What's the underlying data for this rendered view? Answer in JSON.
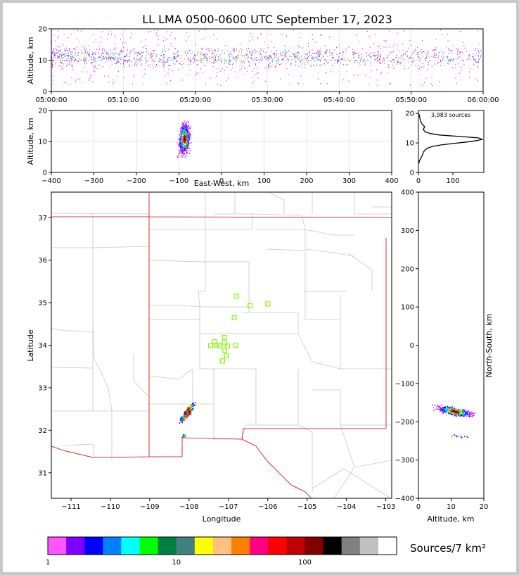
{
  "title": "LL LMA 0500-0600 UTC September 17, 2023",
  "colors": {
    "source": "#ff00ff",
    "state_border": "#d00000",
    "county_border": "#c8c8c8",
    "station_marker": "#80ff00",
    "axis": "#000000"
  },
  "chart_data": [
    {
      "id": "time-height",
      "type": "scatter",
      "xlabel": "",
      "ylabel": "Altitude, km",
      "xlim": [
        "05:00:00",
        "06:00:00"
      ],
      "ylim": [
        0,
        20
      ],
      "x_ticks": [
        "05:00:00",
        "05:10:00",
        "05:20:00",
        "05:30:00",
        "05:40:00",
        "05:50:00",
        "06:00:00"
      ],
      "y_ticks": [
        0,
        10,
        20
      ],
      "grid": true
    },
    {
      "id": "ew-height",
      "type": "heatmap",
      "xlabel": "East-West, km",
      "ylabel": "Altitude, km",
      "xlim": [
        -400,
        400
      ],
      "ylim": [
        0,
        20
      ],
      "x_ticks": [
        -400,
        -300,
        -200,
        -100,
        0,
        100,
        200,
        300,
        400
      ],
      "y_ticks": [
        0,
        10,
        20
      ],
      "grid": true
    },
    {
      "id": "altitude-histogram",
      "type": "line",
      "annotation": "3,983 sources",
      "xlim": [
        0,
        190
      ],
      "ylim": [
        0,
        21
      ],
      "x_ticks": [
        0,
        100
      ],
      "y_ticks": [
        0,
        10,
        20
      ],
      "series": [
        {
          "x": [
            1,
            3,
            8,
            12,
            15,
            20,
            28,
            40,
            65,
            100,
            140,
            170,
            185,
            175,
            120,
            60,
            35,
            20,
            14,
            18,
            10,
            6,
            4,
            2
          ],
          "y": [
            3,
            4,
            5,
            6,
            7,
            7.7,
            8.3,
            8.8,
            9.3,
            9.8,
            10.3,
            10.8,
            11.2,
            11.7,
            12.2,
            12.7,
            13.2,
            13.7,
            14.5,
            15.5,
            16.5,
            17.5,
            18.5,
            19.7
          ]
        }
      ],
      "grid": false
    },
    {
      "id": "plan-view",
      "type": "heatmap",
      "xlabel": "Longitude",
      "ylabel": "Latitude",
      "xlim": [
        -111.5,
        -102.85
      ],
      "ylim": [
        30.4,
        37.6
      ],
      "x_ticks": [
        -111,
        -110,
        -109,
        -108,
        -107,
        -106,
        -105,
        -104,
        -103
      ],
      "y_ticks": [
        31,
        32,
        33,
        34,
        35,
        36,
        37
      ],
      "stations": [
        [
          -106.8,
          35.15
        ],
        [
          -106.45,
          34.93
        ],
        [
          -106.0,
          34.97
        ],
        [
          -106.85,
          34.65
        ],
        [
          -107.1,
          34.18
        ],
        [
          -107.35,
          34.08
        ],
        [
          -107.1,
          34.05
        ],
        [
          -107.45,
          33.99
        ],
        [
          -107.3,
          33.99
        ],
        [
          -107.22,
          33.99
        ],
        [
          -107.02,
          33.98
        ],
        [
          -106.82,
          34.0
        ],
        [
          -107.1,
          33.88
        ],
        [
          -107.05,
          33.75
        ],
        [
          -107.15,
          33.63
        ]
      ],
      "grid": false
    },
    {
      "id": "ns-altitude",
      "type": "heatmap",
      "xlabel": "Altitude, km",
      "ylabel": "North-South, km",
      "xlim": [
        0,
        20
      ],
      "ylim": [
        -400,
        400
      ],
      "x_ticks": [
        0,
        10,
        20
      ],
      "y_ticks": [
        -400,
        -300,
        -200,
        -100,
        0,
        100,
        200,
        300,
        400
      ],
      "grid": false
    },
    {
      "id": "colorbar",
      "type": "bar",
      "label": "Sources/7 km²",
      "tick_labels": [
        "1",
        "10",
        "100"
      ],
      "colors": [
        "#ff55ff",
        "#8000ff",
        "#0000ff",
        "#0080ff",
        "#00ffff",
        "#00ff00",
        "#008040",
        "#408080",
        "#ffff00",
        "#ffc080",
        "#ff8000",
        "#ff0080",
        "#ff0000",
        "#c00000",
        "#800000",
        "#000000",
        "#808080",
        "#c0c0c0",
        "#ffffff"
      ]
    }
  ]
}
